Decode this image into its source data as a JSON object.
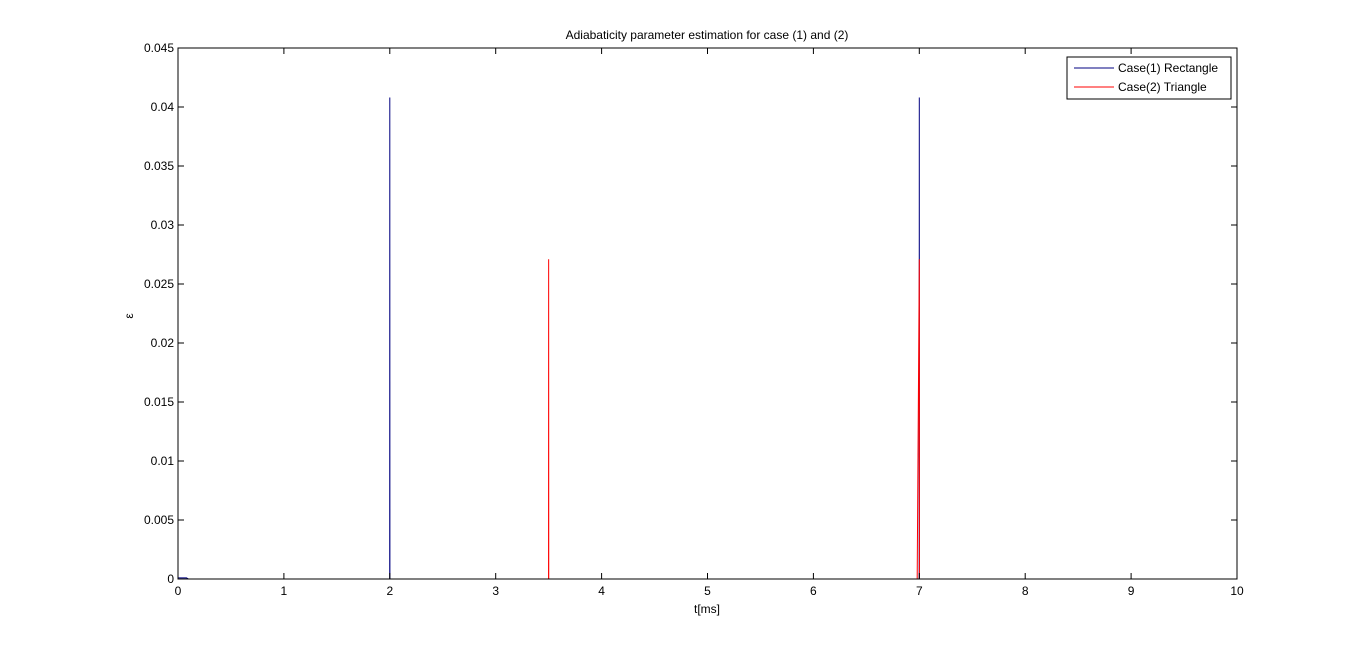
{
  "chart_data": {
    "type": "line",
    "title": "Adiabaticity parameter estimation for case (1) and (2)",
    "xlabel": "t[ms]",
    "ylabel": "ε",
    "xlim": [
      0,
      10
    ],
    "ylim": [
      0,
      0.045
    ],
    "x_ticks": [
      "0",
      "1",
      "2",
      "3",
      "4",
      "5",
      "6",
      "7",
      "8",
      "9",
      "10"
    ],
    "y_ticks": [
      "0",
      "0.005",
      "0.01",
      "0.015",
      "0.02",
      "0.025",
      "0.03",
      "0.035",
      "0.04",
      "0.045"
    ],
    "grid": false,
    "legend": "top-right",
    "series": [
      {
        "name": "Case(1) Rectangle",
        "color": "#000080",
        "points": [
          [
            0,
            0.0001
          ],
          [
            0.08,
            0.0001
          ],
          [
            0.1,
            0
          ],
          [
            1.999,
            0
          ],
          [
            2.0,
            0.0408
          ],
          [
            2.001,
            0
          ],
          [
            6.999,
            0
          ],
          [
            7.0,
            0.0408
          ],
          [
            7.001,
            0
          ],
          [
            10,
            0
          ]
        ]
      },
      {
        "name": "Case(2) Triangle",
        "color": "#ff0000",
        "points": [
          [
            0,
            0
          ],
          [
            3.499,
            0
          ],
          [
            3.5,
            0.0271
          ],
          [
            3.501,
            0
          ],
          [
            6.98,
            0
          ],
          [
            6.99,
            0.0135
          ],
          [
            7.0,
            0.0271
          ],
          [
            7.001,
            0
          ],
          [
            10,
            0
          ]
        ]
      }
    ]
  }
}
